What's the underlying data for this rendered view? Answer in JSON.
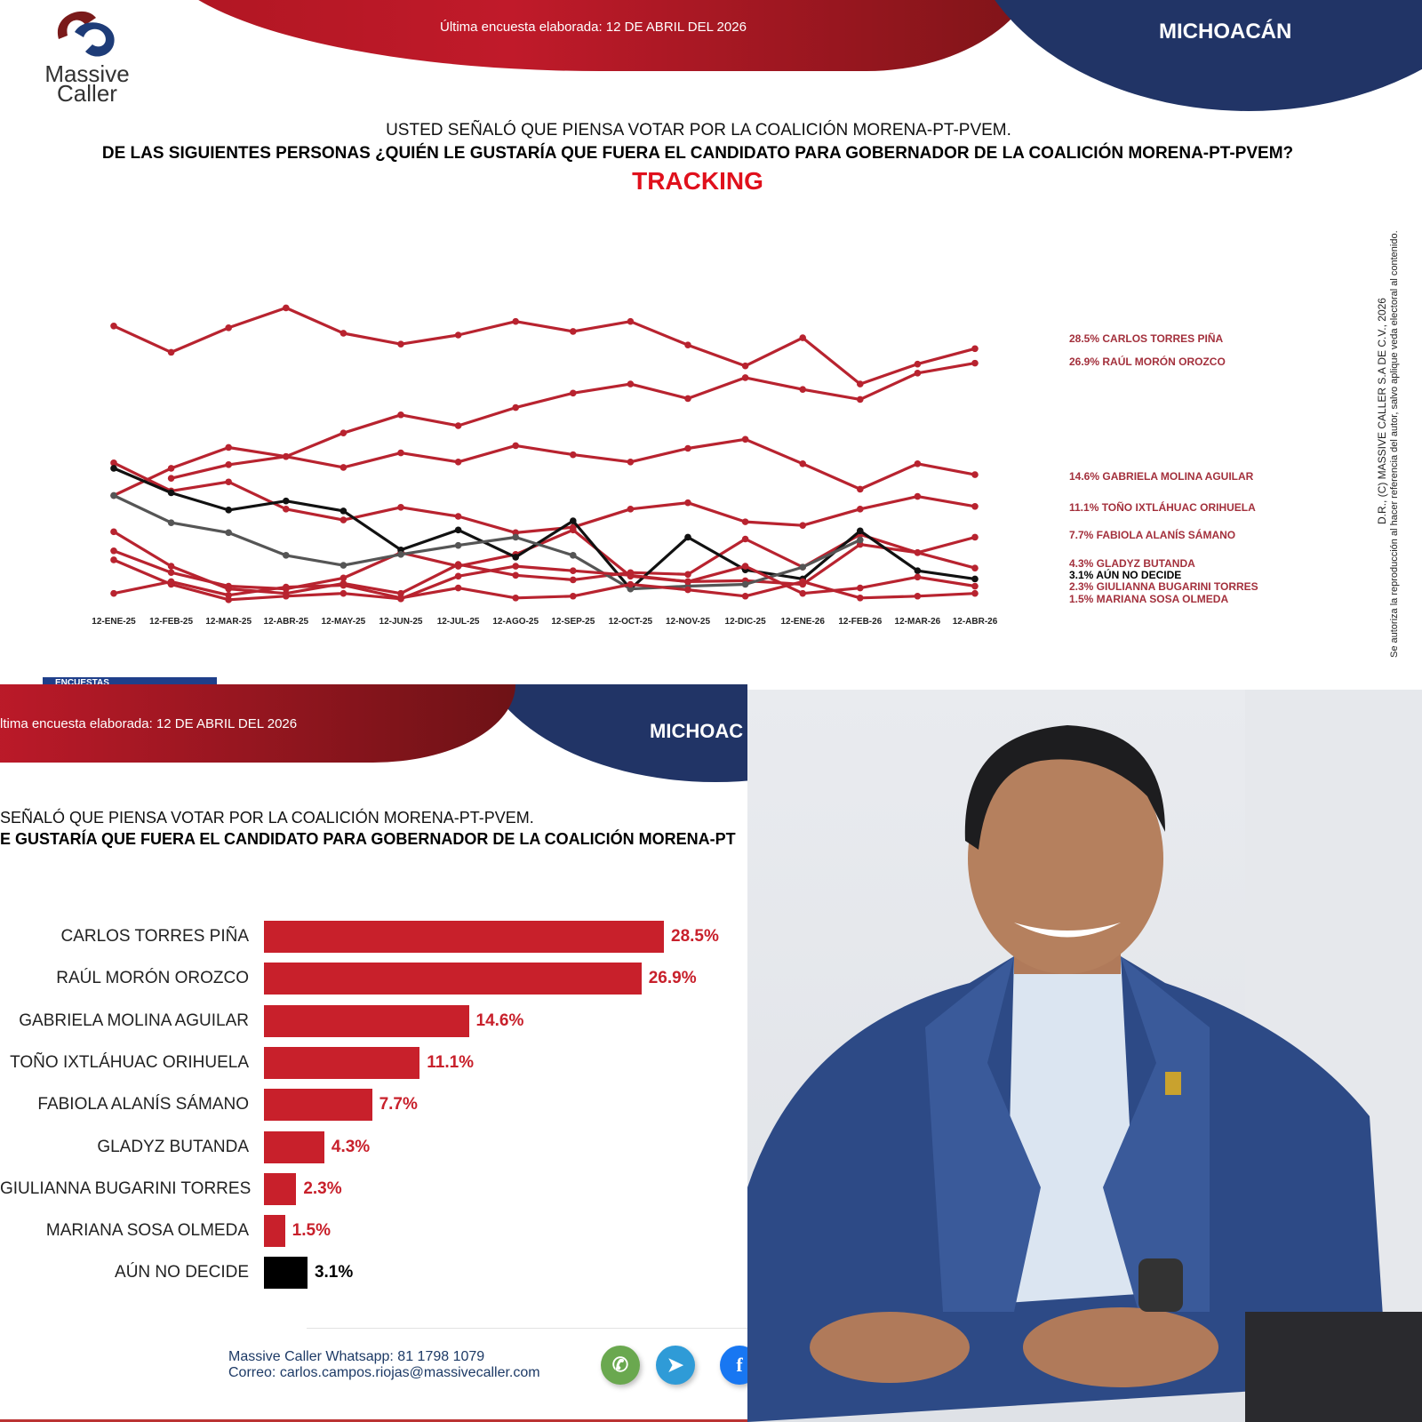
{
  "top_panel": {
    "logo": {
      "line1": "Massive",
      "line2": "Caller"
    },
    "header_date": "Última encuesta elaborada: 12 DE ABRIL DEL 2026",
    "region": "MICHOACÁN",
    "question_line1": "USTED SEÑALÓ QUE PIENSA VOTAR POR LA COALICIÓN MORENA-PT-PVEM.",
    "question_line2": "DE LAS SIGUIENTES PERSONAS ¿QUIÉN LE GUSTARÍA QUE FUERA EL CANDIDATO PARA GOBERNADOR DE LA COALICIÓN MORENA-PT-PVEM?",
    "subtitle": "TRACKING",
    "copyright": "D.R., (C) MASSIVE CALLER S.A DE C.V., 2026",
    "disclaimer": "Se autoriza la reproducción al hacer referencia del autor, salvo aplique veda electoral al contenido.",
    "tab_fragment": "ENCUESTAS"
  },
  "bottom_panel": {
    "header_date": "ltima encuesta elaborada: 12 DE ABRIL DEL 2026",
    "region": "MICHOAC",
    "question_line1": "SEÑALÓ QUE PIENSA VOTAR POR LA COALICIÓN MORENA-PT-PVEM.",
    "question_line2": "E GUSTARÍA QUE FUERA EL CANDIDATO PARA GOBERNADOR DE LA COALICIÓN MORENA-PT",
    "footer": {
      "whatsapp_label": "Massive Caller Whatsapp:",
      "whatsapp_number": "81 1798 1079",
      "email_label": "Correo:",
      "email": "carlos.campos.riojas@massivecaller.com"
    },
    "social_icons": [
      "whatsapp-icon",
      "telegram-icon",
      "facebook-icon"
    ]
  },
  "colors": {
    "red": "#b8232f",
    "black": "#111111",
    "gray": "#555555",
    "blue": "#213466",
    "legend_red": "#a3303c"
  },
  "chart_data": [
    {
      "type": "line",
      "title": "TRACKING",
      "categories": [
        "12-ENE-25",
        "12-FEB-25",
        "12-MAR-25",
        "12-ABR-25",
        "12-MAY-25",
        "12-JUN-25",
        "12-JUL-25",
        "12-AGO-25",
        "12-SEP-25",
        "12-OCT-25",
        "12-NOV-25",
        "12-DIC-25",
        "12-ENE-26",
        "12-FEB-26",
        "12-MAR-26",
        "12-ABR-26"
      ],
      "legend_position": "right",
      "grid": false,
      "series": [
        {
          "name": "CARLOS TORRES PIÑA",
          "legend": "28.5% CARLOS TORRES PIÑA",
          "color": "#b8232f",
          "values": [
            31.0,
            28.1,
            30.8,
            33.0,
            30.2,
            29.0,
            30.0,
            31.5,
            30.4,
            31.5,
            28.9,
            26.6,
            29.7,
            24.6,
            26.8,
            28.5
          ]
        },
        {
          "name": "RAÚL MORÓN OROZCO",
          "legend": "26.9% RAÚL MORÓN OROZCO",
          "color": "#b8232f",
          "values": [
            12.3,
            15.3,
            17.6,
            16.6,
            19.2,
            21.2,
            20.0,
            22.0,
            23.6,
            24.6,
            23.0,
            25.3,
            24.0,
            22.9,
            25.8,
            26.9
          ]
        },
        {
          "name": "GABRIELA MOLINA AGUILAR",
          "legend": "14.6% GABRIELA MOLINA AGUILAR",
          "color": "#b8232f",
          "values": [
            null,
            14.2,
            15.7,
            16.6,
            15.4,
            17.0,
            16.0,
            17.8,
            16.8,
            16.0,
            17.5,
            18.5,
            15.8,
            13.0,
            15.8,
            14.6
          ]
        },
        {
          "name": "TOÑO IXTLÁHUAC ORIHUELA",
          "legend": "11.1% TOÑO IXTLÁHUAC ORIHUELA",
          "color": "#b8232f",
          "values": [
            15.9,
            12.8,
            13.8,
            10.8,
            9.6,
            11.0,
            10.0,
            8.2,
            8.8,
            10.8,
            11.5,
            9.4,
            9.0,
            10.8,
            12.2,
            11.1
          ]
        },
        {
          "name": "FABIOLA ALANÍS SÁMANO",
          "legend": "7.7% FABIOLA ALANÍS SÁMANO",
          "color": "#b8232f",
          "values": [
            8.3,
            4.5,
            2.0,
            1.5,
            2.6,
            1.5,
            4.7,
            3.5,
            3.0,
            3.8,
            3.6,
            7.5,
            4.4,
            8.0,
            6.0,
            7.7
          ]
        },
        {
          "name": "GLADYZ BUTANDA",
          "legend": "4.3% GLADYZ BUTANDA",
          "color": "#b8232f",
          "values": [
            6.2,
            3.8,
            2.3,
            2.0,
            3.2,
            6.0,
            4.5,
            5.8,
            8.5,
            3.4,
            2.8,
            2.9,
            2.5,
            6.9,
            6.0,
            4.3
          ]
        },
        {
          "name": "AÚN NO DECIDE",
          "legend": "3.1% AÚN NO DECIDE",
          "color": "#111111",
          "values": [
            15.3,
            12.6,
            10.7,
            11.7,
            10.6,
            6.3,
            8.5,
            5.5,
            9.5,
            2.0,
            7.7,
            4.1,
            3.1,
            8.4,
            4.0,
            3.1
          ]
        },
        {
          "color": "#555555",
          "values": [
            12.3,
            9.3,
            8.2,
            5.7,
            4.6,
            5.8,
            6.8,
            7.7,
            5.7,
            2.0,
            2.3,
            2.5,
            4.4,
            7.4,
            null,
            null
          ]
        },
        {
          "name": "GIULIANNA BUGARINI TORRES",
          "legend": "2.3% GIULIANNA BUGARINI TORRES",
          "color": "#b8232f",
          "values": [
            5.2,
            2.5,
            0.8,
            1.2,
            1.5,
            0.9,
            3.4,
            4.5,
            4.0,
            3.5,
            2.8,
            4.5,
            1.5,
            2.1,
            3.3,
            2.3
          ]
        },
        {
          "name": "MARIANA SOSA OLMEDA",
          "legend": "1.5% MARIANA SOSA OLMEDA",
          "color": "#b8232f",
          "values": [
            1.5,
            2.8,
            1.3,
            2.2,
            2.4,
            1.0,
            2.1,
            1.0,
            1.2,
            2.5,
            1.9,
            1.2,
            2.8,
            1.0,
            1.2,
            1.5
          ]
        }
      ],
      "ylim": [
        0,
        34
      ]
    },
    {
      "type": "bar",
      "orientation": "horizontal",
      "categories": [
        "CARLOS TORRES PIÑA",
        "RAÚL MORÓN OROZCO",
        "GABRIELA MOLINA AGUILAR",
        "TOÑO IXTLÁHUAC ORIHUELA",
        "FABIOLA ALANÍS SÁMANO",
        "GLADYZ BUTANDA",
        "GIULIANNA BUGARINI TORRES",
        "MARIANA SOSA OLMEDA",
        "AÚN NO DECIDE"
      ],
      "values": [
        28.5,
        26.9,
        14.6,
        11.1,
        7.7,
        4.3,
        2.3,
        1.5,
        3.1
      ],
      "value_labels": [
        "28.5%",
        "26.9%",
        "14.6%",
        "11.1%",
        "7.7%",
        "4.3%",
        "2.3%",
        "1.5%",
        "3.1%"
      ],
      "colors": [
        "#c8202b",
        "#c8202b",
        "#c8202b",
        "#c8202b",
        "#c8202b",
        "#c8202b",
        "#c8202b",
        "#c8202b",
        "#000000"
      ],
      "label_colors": [
        "#c8202b",
        "#c8202b",
        "#c8202b",
        "#c8202b",
        "#c8202b",
        "#c8202b",
        "#c8202b",
        "#c8202b",
        "#000000"
      ]
    }
  ]
}
